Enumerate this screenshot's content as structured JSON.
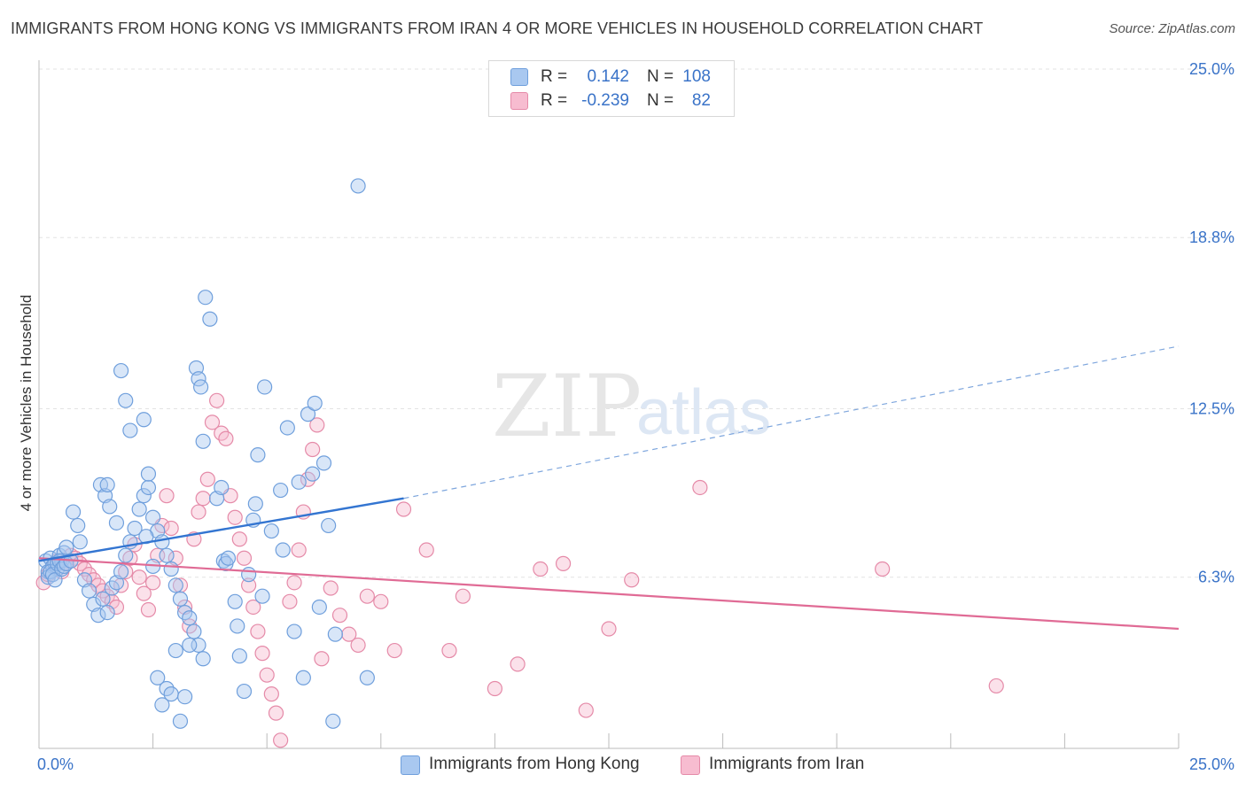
{
  "title": "IMMIGRANTS FROM HONG KONG VS IMMIGRANTS FROM IRAN 4 OR MORE VEHICLES IN HOUSEHOLD CORRELATION CHART",
  "source": "Source: ZipAtlas.com",
  "watermark": {
    "zip": "ZIP",
    "atlas": "atlas"
  },
  "legend": {
    "rows": [
      {
        "r_label": "R =",
        "r_value": "0.142",
        "n_label": "N =",
        "n_value": "108",
        "color": "#a9c8f0",
        "border": "#6f9fdc"
      },
      {
        "r_label": "R =",
        "r_value": "-0.239",
        "n_label": "N =",
        "n_value": "82",
        "color": "#f7bcd0",
        "border": "#e58aa8"
      }
    ]
  },
  "bottom_legend": [
    {
      "label": "Immigrants from Hong Kong",
      "color": "#a9c8f0",
      "border": "#6f9fdc"
    },
    {
      "label": "Immigrants from Iran",
      "color": "#f7bcd0",
      "border": "#e58aa8"
    }
  ],
  "chart_data": {
    "type": "scatter",
    "title": "IMMIGRANTS FROM HONG KONG VS IMMIGRANTS FROM IRAN 4 OR MORE VEHICLES IN HOUSEHOLD CORRELATION CHART",
    "xlabel": "",
    "ylabel": "4 or more Vehicles in Household",
    "xlim": [
      0,
      25
    ],
    "ylim": [
      0,
      25.0
    ],
    "x_tick_labels": [
      "0.0%",
      "25.0%"
    ],
    "y_tick_labels": [
      "6.3%",
      "12.5%",
      "18.8%",
      "25.0%"
    ],
    "y_ticks": [
      6.3,
      12.5,
      18.8,
      25.0
    ],
    "grid": true,
    "legend_position": "top-center",
    "series": [
      {
        "name": "Immigrants from Hong Kong",
        "color": "#6f9fdc",
        "fill": "#a9c8f0",
        "trend": {
          "x0": 0,
          "y0": 6.9,
          "x1": 8.0,
          "y1": 9.2,
          "dash_x1": 25.0,
          "dash_y1": 14.8
        },
        "points": [
          [
            0.15,
            6.9
          ],
          [
            0.2,
            6.5
          ],
          [
            0.25,
            7.0
          ],
          [
            0.3,
            6.7
          ],
          [
            0.35,
            6.8
          ],
          [
            0.4,
            6.6
          ],
          [
            0.45,
            7.1
          ],
          [
            0.5,
            6.9
          ],
          [
            0.55,
            7.2
          ],
          [
            0.6,
            7.4
          ],
          [
            0.2,
            6.3
          ],
          [
            0.25,
            6.5
          ],
          [
            0.3,
            6.4
          ],
          [
            0.35,
            6.2
          ],
          [
            0.4,
            6.8
          ],
          [
            0.45,
            6.9
          ],
          [
            0.5,
            6.6
          ],
          [
            0.55,
            6.7
          ],
          [
            0.6,
            6.8
          ],
          [
            0.7,
            6.9
          ],
          [
            0.75,
            8.7
          ],
          [
            0.85,
            8.2
          ],
          [
            0.9,
            7.6
          ],
          [
            1.0,
            6.2
          ],
          [
            1.1,
            5.8
          ],
          [
            1.2,
            5.3
          ],
          [
            1.3,
            4.9
          ],
          [
            1.4,
            5.5
          ],
          [
            1.5,
            5.0
          ],
          [
            1.6,
            5.9
          ],
          [
            1.7,
            6.1
          ],
          [
            1.8,
            6.5
          ],
          [
            1.9,
            7.1
          ],
          [
            2.0,
            7.6
          ],
          [
            2.1,
            8.1
          ],
          [
            2.2,
            8.8
          ],
          [
            2.3,
            9.3
          ],
          [
            2.4,
            9.6
          ],
          [
            2.5,
            8.5
          ],
          [
            2.6,
            8.0
          ],
          [
            2.7,
            7.6
          ],
          [
            2.8,
            7.1
          ],
          [
            2.9,
            6.6
          ],
          [
            3.0,
            6.0
          ],
          [
            3.1,
            5.5
          ],
          [
            3.2,
            5.0
          ],
          [
            3.3,
            4.8
          ],
          [
            3.4,
            4.3
          ],
          [
            3.5,
            3.8
          ],
          [
            3.6,
            3.3
          ],
          [
            1.35,
            9.7
          ],
          [
            1.45,
            9.3
          ],
          [
            1.5,
            9.7
          ],
          [
            1.55,
            8.9
          ],
          [
            1.7,
            8.3
          ],
          [
            1.8,
            13.9
          ],
          [
            1.9,
            12.8
          ],
          [
            2.0,
            11.7
          ],
          [
            2.3,
            12.1
          ],
          [
            2.35,
            7.8
          ],
          [
            2.4,
            10.1
          ],
          [
            2.5,
            6.7
          ],
          [
            2.6,
            2.6
          ],
          [
            2.7,
            1.6
          ],
          [
            2.8,
            2.2
          ],
          [
            2.9,
            2.0
          ],
          [
            3.0,
            3.6
          ],
          [
            3.1,
            1.0
          ],
          [
            3.2,
            1.9
          ],
          [
            3.3,
            3.8
          ],
          [
            3.45,
            14.0
          ],
          [
            3.5,
            13.6
          ],
          [
            3.55,
            13.3
          ],
          [
            3.6,
            11.3
          ],
          [
            3.65,
            16.6
          ],
          [
            3.75,
            15.8
          ],
          [
            3.9,
            9.2
          ],
          [
            4.0,
            9.6
          ],
          [
            4.05,
            6.9
          ],
          [
            4.1,
            6.8
          ],
          [
            4.15,
            7.0
          ],
          [
            4.3,
            5.4
          ],
          [
            4.35,
            4.5
          ],
          [
            4.4,
            3.4
          ],
          [
            4.5,
            2.1
          ],
          [
            4.6,
            6.4
          ],
          [
            4.7,
            8.4
          ],
          [
            4.75,
            9.0
          ],
          [
            4.8,
            10.8
          ],
          [
            4.9,
            5.6
          ],
          [
            4.95,
            13.3
          ],
          [
            5.1,
            8.0
          ],
          [
            5.3,
            9.5
          ],
          [
            5.35,
            7.3
          ],
          [
            5.45,
            11.8
          ],
          [
            5.6,
            4.3
          ],
          [
            5.8,
            2.6
          ],
          [
            5.9,
            12.3
          ],
          [
            6.0,
            10.1
          ],
          [
            6.05,
            12.7
          ],
          [
            6.15,
            5.2
          ],
          [
            6.25,
            10.5
          ],
          [
            6.35,
            8.2
          ],
          [
            6.45,
            1.0
          ],
          [
            6.5,
            4.2
          ],
          [
            7.0,
            20.7
          ],
          [
            7.2,
            2.6
          ],
          [
            5.7,
            9.8
          ]
        ]
      },
      {
        "name": "Immigrants from Iran",
        "color": "#e58aa8",
        "fill": "#f7bcd0",
        "trend": {
          "x0": 0,
          "y0": 7.0,
          "x1": 25.0,
          "y1": 4.4
        },
        "points": [
          [
            0.1,
            6.1
          ],
          [
            0.2,
            6.4
          ],
          [
            0.3,
            6.7
          ],
          [
            0.4,
            6.9
          ],
          [
            0.5,
            6.5
          ],
          [
            0.6,
            6.8
          ],
          [
            0.7,
            7.1
          ],
          [
            0.8,
            7.0
          ],
          [
            0.9,
            6.8
          ],
          [
            1.0,
            6.6
          ],
          [
            1.1,
            6.4
          ],
          [
            1.2,
            6.2
          ],
          [
            1.3,
            6.0
          ],
          [
            1.4,
            5.8
          ],
          [
            1.5,
            5.6
          ],
          [
            1.6,
            5.4
          ],
          [
            1.7,
            5.2
          ],
          [
            1.8,
            6.0
          ],
          [
            1.9,
            6.5
          ],
          [
            2.0,
            7.0
          ],
          [
            2.1,
            7.5
          ],
          [
            2.2,
            6.3
          ],
          [
            2.3,
            5.7
          ],
          [
            2.4,
            5.1
          ],
          [
            2.5,
            6.1
          ],
          [
            2.6,
            7.1
          ],
          [
            2.7,
            8.2
          ],
          [
            2.8,
            9.3
          ],
          [
            2.9,
            8.1
          ],
          [
            3.0,
            7.0
          ],
          [
            3.1,
            6.0
          ],
          [
            3.2,
            5.2
          ],
          [
            3.3,
            4.5
          ],
          [
            3.4,
            7.7
          ],
          [
            3.5,
            8.7
          ],
          [
            3.6,
            9.2
          ],
          [
            3.7,
            9.9
          ],
          [
            3.8,
            12.0
          ],
          [
            3.9,
            12.8
          ],
          [
            4.0,
            11.6
          ],
          [
            4.1,
            11.4
          ],
          [
            4.2,
            9.3
          ],
          [
            4.3,
            8.5
          ],
          [
            4.4,
            7.7
          ],
          [
            4.5,
            7.0
          ],
          [
            4.6,
            6.0
          ],
          [
            4.7,
            5.2
          ],
          [
            4.8,
            4.3
          ],
          [
            4.9,
            3.5
          ],
          [
            5.0,
            2.7
          ],
          [
            5.1,
            2.0
          ],
          [
            5.2,
            1.3
          ],
          [
            5.3,
            0.3
          ],
          [
            5.5,
            5.4
          ],
          [
            5.6,
            6.1
          ],
          [
            5.7,
            7.3
          ],
          [
            5.8,
            8.7
          ],
          [
            5.9,
            9.9
          ],
          [
            6.0,
            11.0
          ],
          [
            6.1,
            11.9
          ],
          [
            6.2,
            3.3
          ],
          [
            6.4,
            5.9
          ],
          [
            6.6,
            4.9
          ],
          [
            6.8,
            4.2
          ],
          [
            7.0,
            3.8
          ],
          [
            7.2,
            5.6
          ],
          [
            7.5,
            5.4
          ],
          [
            7.8,
            3.6
          ],
          [
            8.0,
            8.8
          ],
          [
            8.5,
            7.3
          ],
          [
            9.0,
            3.6
          ],
          [
            9.3,
            5.6
          ],
          [
            10.0,
            2.2
          ],
          [
            10.5,
            3.1
          ],
          [
            11.0,
            6.6
          ],
          [
            11.5,
            6.8
          ],
          [
            12.0,
            1.4
          ],
          [
            12.5,
            4.4
          ],
          [
            13.0,
            6.2
          ],
          [
            14.5,
            9.6
          ],
          [
            18.5,
            6.6
          ],
          [
            21.0,
            2.3
          ]
        ]
      }
    ]
  }
}
